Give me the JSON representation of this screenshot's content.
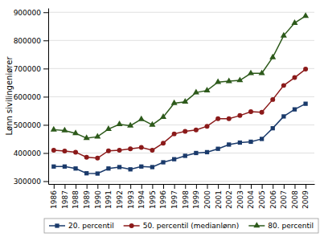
{
  "chart_data": {
    "type": "line",
    "ylabel": "Lønn sivilingeniører",
    "x": [
      1986,
      1987,
      1988,
      1989,
      1990,
      1991,
      1992,
      1993,
      1994,
      1995,
      1996,
      1997,
      1998,
      1999,
      2000,
      2001,
      2002,
      2003,
      2004,
      2005,
      2006,
      2007,
      2008,
      2009
    ],
    "series": [
      {
        "name": "20. percentil",
        "color": "#1a3a6b",
        "marker": "square",
        "values": [
          352000,
          352000,
          345000,
          328000,
          327000,
          345000,
          350000,
          342000,
          352000,
          350000,
          367000,
          378000,
          390000,
          400000,
          403000,
          415000,
          430000,
          437000,
          440000,
          450000,
          488000,
          530000,
          555000,
          575000
        ]
      },
      {
        "name": "50. percentil (medianlønn)",
        "color": "#8b1a1a",
        "marker": "circle",
        "values": [
          410000,
          407000,
          403000,
          385000,
          382000,
          408000,
          410000,
          415000,
          420000,
          410000,
          435000,
          468000,
          477000,
          482000,
          495000,
          522000,
          522000,
          533000,
          547000,
          545000,
          590000,
          640000,
          668000,
          698000
        ]
      },
      {
        "name": "80. percentil",
        "color": "#2d5a1b",
        "marker": "triangle",
        "values": [
          483000,
          480000,
          470000,
          453000,
          458000,
          485000,
          502000,
          497000,
          520000,
          500000,
          528000,
          577000,
          582000,
          615000,
          622000,
          652000,
          655000,
          658000,
          683000,
          683000,
          740000,
          817000,
          862000,
          887000
        ]
      }
    ],
    "xlim": [
      1985.5,
      2009.8
    ],
    "xticks": [
      1986,
      1987,
      1988,
      1989,
      1990,
      1991,
      1992,
      1993,
      1994,
      1995,
      1996,
      1997,
      1998,
      1999,
      2000,
      2001,
      2002,
      2003,
      2004,
      2005,
      2006,
      2007,
      2008,
      2009
    ],
    "ylim": [
      290000,
      915000
    ],
    "yticks": [
      300000,
      400000,
      500000,
      600000,
      700000,
      800000,
      900000
    ],
    "grid": true,
    "legend": "bottom"
  }
}
